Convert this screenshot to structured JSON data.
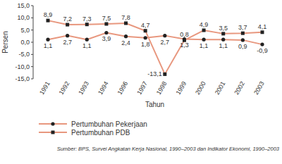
{
  "chart_data": {
    "type": "line",
    "x_label": "Tahun",
    "y_label": "Persen",
    "source": "Sumber: BPS, Survei Angkatan Kerja Nasional, 1990–2003 dan Indikator Ekonomi, 1990–2003",
    "categories": [
      "1991",
      "1992",
      "1993",
      "1994",
      "1996",
      "1997",
      "1998",
      "1999",
      "2000",
      "2001",
      "2002",
      "2003"
    ],
    "series": [
      {
        "name": "Pertumbuhan Pekerjaan",
        "color": "#e8977e",
        "marker": "circle",
        "line_style": "solid",
        "values": [
          1.1,
          2.7,
          1.1,
          3.9,
          2.4,
          1.8,
          2.7,
          1.3,
          1.1,
          1.1,
          0.9,
          -0.9
        ],
        "value_labels": [
          "1,1",
          "2,7",
          "1,1",
          "3,9",
          "2,4",
          "1,8",
          "2,7",
          "1,3",
          "1,1",
          "1,1",
          "0,9",
          "-0,9"
        ]
      },
      {
        "name": "Pertumbuhan PDB",
        "color": "#e8977e",
        "marker": "square",
        "line_style": "solid",
        "values": [
          8.9,
          7.2,
          7.3,
          7.5,
          7.8,
          4.7,
          -13.1,
          0.8,
          4.9,
          3.5,
          3.7,
          4.1
        ],
        "value_labels": [
          "8,9",
          "7,2",
          "7,3",
          "7,5",
          "7,8",
          "4,7",
          "-13,1",
          "0,8",
          "4,9",
          "3,5",
          "3,7",
          "4,1"
        ]
      }
    ],
    "ylim": [
      -15,
      15
    ],
    "yticks": [
      {
        "value": -15,
        "label": "-15,0"
      },
      {
        "value": -10,
        "label": "-10,0"
      },
      {
        "value": -5,
        "label": "-5,0"
      },
      {
        "value": 0,
        "label": "0,0"
      },
      {
        "value": 5,
        "label": "5,0"
      },
      {
        "value": 10,
        "label": "10,0"
      },
      {
        "value": 15,
        "label": "15,0"
      }
    ],
    "grid": false,
    "legend": "bottom",
    "data_labels": true
  }
}
